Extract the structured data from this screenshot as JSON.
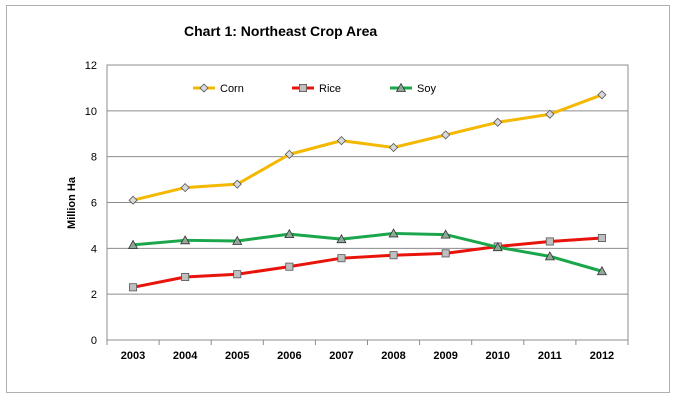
{
  "chart_data": {
    "type": "line",
    "title": "Chart 1: Northeast Crop Area",
    "xlabel": "",
    "ylabel": "Million Ha",
    "categories": [
      "2003",
      "2004",
      "2005",
      "2006",
      "2007",
      "2008",
      "2009",
      "2010",
      "2011",
      "2012"
    ],
    "ylim": [
      0,
      12
    ],
    "yticks": [
      "0",
      "2",
      "4",
      "6",
      "8",
      "10",
      "12"
    ],
    "grid": true,
    "legend_position": "top",
    "series": [
      {
        "name": "Corn",
        "color": "#f4b800",
        "marker": "diamond",
        "values": [
          6.1,
          6.65,
          6.8,
          8.1,
          8.7,
          8.4,
          8.95,
          9.5,
          9.85,
          10.7
        ]
      },
      {
        "name": "Rice",
        "color": "#e8140c",
        "marker": "square",
        "values": [
          2.3,
          2.75,
          2.87,
          3.2,
          3.57,
          3.7,
          3.78,
          4.08,
          4.3,
          4.45
        ]
      },
      {
        "name": "Soy",
        "color": "#1aa64a",
        "marker": "triangle",
        "values": [
          4.15,
          4.35,
          4.32,
          4.62,
          4.4,
          4.65,
          4.6,
          4.05,
          3.65,
          3.0
        ]
      }
    ]
  }
}
